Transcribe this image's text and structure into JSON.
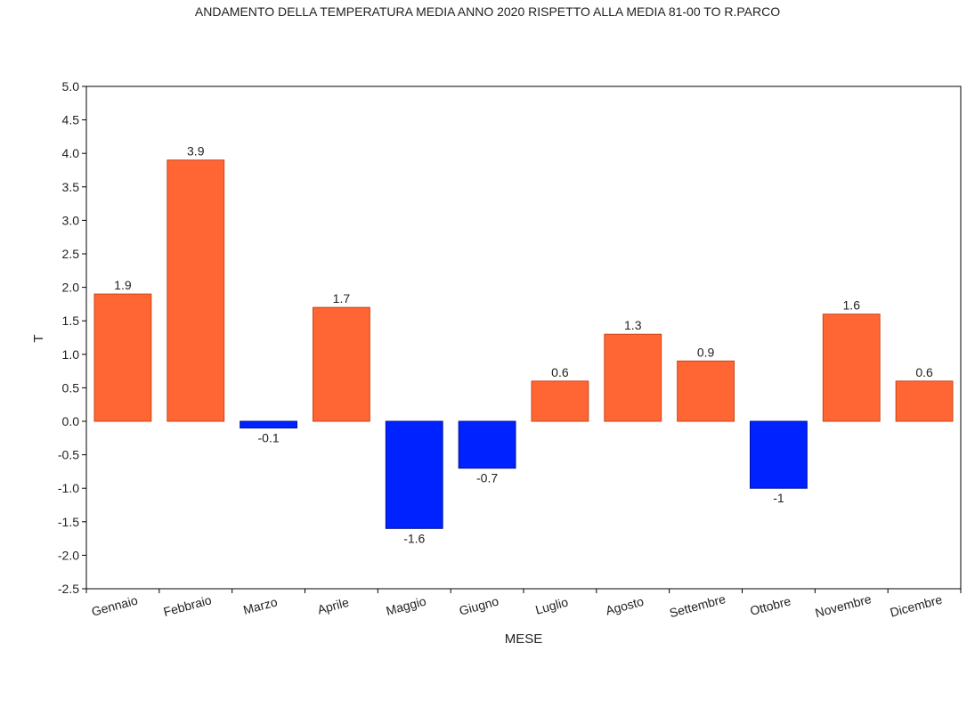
{
  "chart_data": {
    "type": "bar",
    "title": "ANDAMENTO DELLA TEMPERATURA MEDIA ANNO 2020 RISPETTO ALLA MEDIA 81-00 TO R.PARCO",
    "xlabel": "MESE",
    "ylabel": "T",
    "ylim": [
      -2.5,
      5.0
    ],
    "yticks": [
      "5.0",
      "4.5",
      "4.0",
      "3.5",
      "3.0",
      "2.5",
      "2.0",
      "1.5",
      "1.0",
      "0.5",
      "0.0",
      "-0.5",
      "-1.0",
      "-1.5",
      "-2.0",
      "-2.5"
    ],
    "categories": [
      "Gennaio",
      "Febbraio",
      "Marzo",
      "Aprile",
      "Maggio",
      "Giugno",
      "Luglio",
      "Agosto",
      "Settembre",
      "Ottobre",
      "Novembre",
      "Dicembre"
    ],
    "values": [
      1.9,
      3.9,
      -0.1,
      1.7,
      -1.6,
      -0.7,
      0.6,
      1.3,
      0.9,
      -1.0,
      1.6,
      0.6
    ],
    "data_labels": [
      "1.9",
      "3.9",
      "-0.1",
      "1.7",
      "-1.6",
      "-0.7",
      "0.6",
      "1.3",
      "0.9",
      "-1",
      "1.6",
      "0.6"
    ],
    "grid": false,
    "legend": "none",
    "colors": {
      "positive": "#ff6633",
      "negative": "#0022ff",
      "positive_edge": "#c94418",
      "negative_edge": "#001199"
    }
  }
}
